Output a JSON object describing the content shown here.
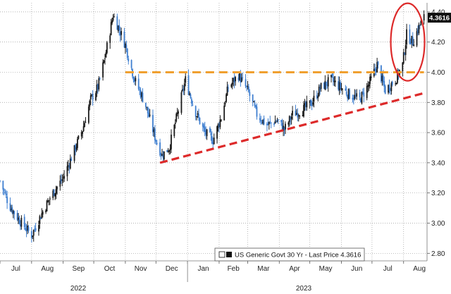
{
  "chart_data": {
    "type": "line",
    "style": "ohlc-bars",
    "y_tick_labels": [
      "2.80",
      "3.00",
      "3.20",
      "3.40",
      "3.60",
      "3.80",
      "4.00",
      "4.20",
      "4.40"
    ],
    "ylim": [
      2.75,
      4.46
    ],
    "x_month_labels": [
      "Jul",
      "Aug",
      "Sep",
      "Oct",
      "Nov",
      "Dec",
      "Jan",
      "Feb",
      "Mar",
      "Apr",
      "May",
      "Jun",
      "Jul",
      "Aug"
    ],
    "x_year_labels": [
      "2022",
      "2023"
    ],
    "series": [
      {
        "name": "US Generic Govt 30 Yr - Last Price",
        "color": "#1a1a1a",
        "dates": [
          "2022-07-01",
          "2022-07-10",
          "2022-07-20",
          "2022-08-01",
          "2022-08-10",
          "2022-08-20",
          "2022-09-01",
          "2022-09-10",
          "2022-09-20",
          "2022-09-28",
          "2022-10-05",
          "2022-10-12",
          "2022-10-20",
          "2022-10-25",
          "2022-11-01",
          "2022-11-10",
          "2022-11-20",
          "2022-12-01",
          "2022-12-07",
          "2022-12-14",
          "2022-12-22",
          "2022-12-30",
          "2023-01-08",
          "2023-01-18",
          "2023-01-26",
          "2023-02-03",
          "2023-02-10",
          "2023-02-20",
          "2023-03-01",
          "2023-03-10",
          "2023-03-20",
          "2023-03-30",
          "2023-04-06",
          "2023-04-14",
          "2023-04-24",
          "2023-05-03",
          "2023-05-12",
          "2023-05-22",
          "2023-05-31",
          "2023-06-09",
          "2023-06-19",
          "2023-06-28",
          "2023-07-06",
          "2023-07-14",
          "2023-07-24",
          "2023-07-31",
          "2023-08-04",
          "2023-08-10",
          "2023-08-16",
          "2023-08-21"
        ],
        "values": [
          3.28,
          3.12,
          3.02,
          2.92,
          3.05,
          3.18,
          3.3,
          3.45,
          3.62,
          3.82,
          3.9,
          4.1,
          4.38,
          4.3,
          4.18,
          3.95,
          3.8,
          3.55,
          3.45,
          3.5,
          3.72,
          3.95,
          3.75,
          3.6,
          3.55,
          3.7,
          3.9,
          3.98,
          3.88,
          3.72,
          3.65,
          3.68,
          3.62,
          3.72,
          3.75,
          3.8,
          3.9,
          3.95,
          3.9,
          3.85,
          3.82,
          3.92,
          4.05,
          3.88,
          3.95,
          4.05,
          4.25,
          4.2,
          4.3,
          4.3616
        ]
      }
    ],
    "last_price_label": "4.3616",
    "legend_text": "US Generic Govt 30 Yr - Last Price 4.3616",
    "resistance_line": {
      "level": 4.0,
      "from": "2022-11-01",
      "to": "2023-08-21",
      "color": "#f0a030",
      "style": "dashed"
    },
    "support_line": {
      "from_date": "2022-12-05",
      "from_value": 3.4,
      "to_date": "2023-08-20",
      "to_value": 3.86,
      "color": "#dd2a2a",
      "style": "dashed"
    },
    "highlight_circle": {
      "center_date": "2023-08-05",
      "center_value": 4.2,
      "color": "#dd2a2a"
    },
    "grid": true,
    "grid_style": "dotted",
    "legend_position": "bottom-right"
  }
}
